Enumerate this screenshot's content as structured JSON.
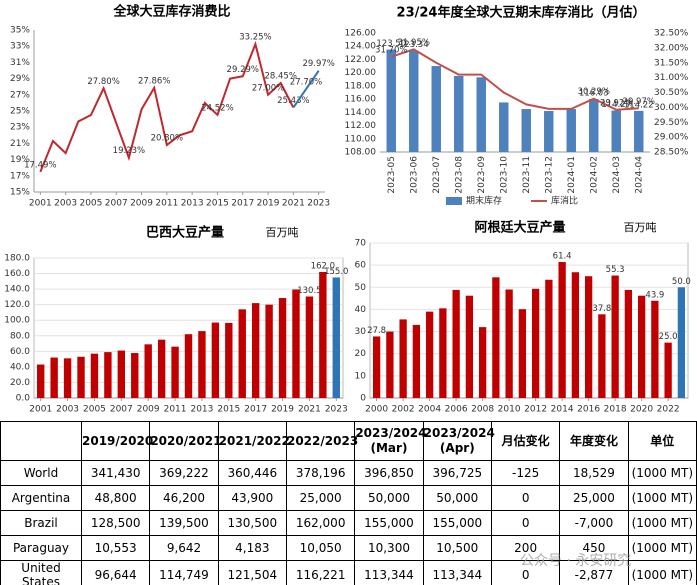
{
  "chart_data": [
    {
      "type": "line",
      "title": "全球大豆库存消费比",
      "x": [
        2001,
        2002,
        2003,
        2004,
        2005,
        2006,
        2007,
        2008,
        2009,
        2010,
        2011,
        2012,
        2013,
        2014,
        2015,
        2016,
        2017,
        2018,
        2019,
        2020,
        2021,
        2022,
        2023
      ],
      "xlim": [
        2000.5,
        2023.5
      ],
      "xticks": [
        2001,
        2003,
        2005,
        2007,
        2009,
        2011,
        2013,
        2015,
        2017,
        2019,
        2021,
        2023
      ],
      "ylim": [
        15,
        35
      ],
      "yticks": [
        {
          "value": 15,
          "label": "15%"
        },
        {
          "value": 17,
          "label": "17%"
        },
        {
          "value": 19,
          "label": "19%"
        },
        {
          "value": 21,
          "label": "21%"
        },
        {
          "value": 23,
          "label": "23%"
        },
        {
          "value": 25,
          "label": "25%"
        },
        {
          "value": 27,
          "label": "27%"
        },
        {
          "value": 29,
          "label": "29%"
        },
        {
          "value": 31,
          "label": "31%"
        },
        {
          "value": 33,
          "label": "33%"
        },
        {
          "value": 35,
          "label": "35%"
        }
      ],
      "grid": false,
      "series": [
        {
          "color": "#c0282d",
          "values": [
            17.49,
            21.3,
            19.8,
            23.7,
            24.5,
            27.8,
            23.5,
            19.23,
            25.2,
            27.86,
            20.8,
            22.0,
            22.5,
            26.0,
            24.52,
            29.0,
            29.29,
            33.25,
            27.0,
            28.45,
            25.43,
            null,
            null
          ],
          "value_labels": [
            "17.49%",
            null,
            null,
            null,
            null,
            "27.80%",
            null,
            "19.23%",
            null,
            "27.86%",
            "20.80%",
            null,
            null,
            null,
            "24.52%",
            null,
            "29.29%",
            "33.25%",
            "27.00%",
            "28.45%",
            "25.43%",
            null,
            null
          ]
        },
        {
          "color": "#2e75b6",
          "values": [
            null,
            null,
            null,
            null,
            null,
            null,
            null,
            null,
            null,
            null,
            null,
            null,
            null,
            null,
            null,
            null,
            null,
            null,
            null,
            null,
            25.43,
            27.7,
            29.97
          ],
          "value_labels": [
            null,
            null,
            null,
            null,
            null,
            null,
            null,
            null,
            null,
            null,
            null,
            null,
            null,
            null,
            null,
            null,
            null,
            null,
            null,
            null,
            null,
            "27.70%",
            "29.97%"
          ]
        }
      ]
    },
    {
      "type": "combo",
      "title": "23/24年度全球大豆期末库存消比（月估）",
      "categories": [
        "2023-05",
        "2023-06",
        "2023-07",
        "2023-08",
        "2023-09",
        "2023-10",
        "2023-11",
        "2023-12",
        "2024-01",
        "2024-02",
        "2024-03",
        "2024-04"
      ],
      "ylim": [
        108,
        126
      ],
      "yticks": [
        {
          "value": 108,
          "label": "108.00"
        },
        {
          "value": 110,
          "label": "110.00"
        },
        {
          "value": 112,
          "label": "112.00"
        },
        {
          "value": 114,
          "label": "114.00"
        },
        {
          "value": 116,
          "label": "116.00"
        },
        {
          "value": 118,
          "label": "118.00"
        },
        {
          "value": 120,
          "label": "120.00"
        },
        {
          "value": 122,
          "label": "122.00"
        },
        {
          "value": 124,
          "label": "124.00"
        },
        {
          "value": 126,
          "label": "126.00"
        }
      ],
      "y2lim": [
        28.5,
        32.5
      ],
      "y2ticks": [
        {
          "value": 28.5,
          "label": "28.50%"
        },
        {
          "value": 29,
          "label": "29.00%"
        },
        {
          "value": 29.5,
          "label": "29.50%"
        },
        {
          "value": 30,
          "label": "30.00%"
        },
        {
          "value": 30.5,
          "label": "30.50%"
        },
        {
          "value": 31,
          "label": "31.00%"
        },
        {
          "value": 31.5,
          "label": "31.50%"
        },
        {
          "value": 32,
          "label": "32.00%"
        },
        {
          "value": 32.5,
          "label": "32.50%"
        }
      ],
      "grid": false,
      "legend": "bottom",
      "series": [
        {
          "name": "期末库存",
          "type": "bar",
          "color": "#4f81bd",
          "values": [
            123.5,
            123.34,
            121.0,
            119.5,
            119.3,
            115.5,
            114.5,
            114.2,
            114.5,
            116.03,
            114.27,
            114.22
          ],
          "value_labels": [
            "123.50",
            "123.34",
            null,
            null,
            null,
            null,
            null,
            null,
            null,
            "116.03",
            "114.27",
            "114.22"
          ]
        },
        {
          "name": "库消比",
          "type": "line",
          "axis": "y2",
          "color": "#c0504d",
          "values": [
            31.7,
            31.95,
            31.5,
            31.1,
            31.1,
            30.5,
            30.1,
            29.95,
            29.95,
            30.29,
            29.92,
            29.97
          ],
          "value_labels": [
            "31.70%",
            "31.95%",
            null,
            null,
            null,
            null,
            null,
            null,
            null,
            "30.29%",
            "29.92%",
            "29.97%"
          ]
        }
      ]
    },
    {
      "type": "bar",
      "title": "巴西大豆产量",
      "unit": "百万吨",
      "x": [
        2001,
        2002,
        2003,
        2004,
        2005,
        2006,
        2007,
        2008,
        2009,
        2010,
        2011,
        2012,
        2013,
        2014,
        2015,
        2016,
        2017,
        2018,
        2019,
        2020,
        2021,
        2022,
        2023
      ],
      "xlim": [
        2000.5,
        2023.5
      ],
      "xticks": [
        2001,
        2003,
        2005,
        2007,
        2009,
        2011,
        2013,
        2015,
        2017,
        2019,
        2021,
        2023
      ],
      "ylim": [
        0,
        180
      ],
      "yticks": [
        {
          "value": 0,
          "label": "0.0"
        },
        {
          "value": 20,
          "label": "20.0"
        },
        {
          "value": 40,
          "label": "40.0"
        },
        {
          "value": 60,
          "label": "60.0"
        },
        {
          "value": 80,
          "label": "80.0"
        },
        {
          "value": 100,
          "label": "100.0"
        },
        {
          "value": 120,
          "label": "120.0"
        },
        {
          "value": 140,
          "label": "140.0"
        },
        {
          "value": 160,
          "label": "160.0"
        },
        {
          "value": 180,
          "label": "180.0"
        }
      ],
      "grid": true,
      "values": [
        43,
        52,
        51,
        53,
        57,
        59,
        61,
        57.8,
        69,
        75,
        66,
        82,
        86,
        97,
        96.5,
        114,
        122,
        120,
        128.5,
        139.5,
        130.5,
        162,
        155
      ],
      "value_labels": [
        null,
        null,
        null,
        null,
        null,
        null,
        null,
        null,
        null,
        null,
        null,
        null,
        null,
        null,
        null,
        null,
        null,
        null,
        null,
        null,
        "130.5",
        "162.0",
        "155.0"
      ],
      "colors": [
        "#c00000",
        "#c00000",
        "#c00000",
        "#c00000",
        "#c00000",
        "#c00000",
        "#c00000",
        "#c00000",
        "#c00000",
        "#c00000",
        "#c00000",
        "#c00000",
        "#c00000",
        "#c00000",
        "#c00000",
        "#c00000",
        "#c00000",
        "#c00000",
        "#c00000",
        "#c00000",
        "#c00000",
        "#c00000",
        "#2e75b6"
      ]
    },
    {
      "type": "bar",
      "title": "阿根廷大豆产量",
      "unit": "百万吨",
      "x": [
        2000,
        2001,
        2002,
        2003,
        2004,
        2005,
        2006,
        2007,
        2008,
        2009,
        2010,
        2011,
        2012,
        2013,
        2014,
        2015,
        2016,
        2017,
        2018,
        2019,
        2020,
        2021,
        2022,
        2023
      ],
      "xlim": [
        1999.5,
        2023.5
      ],
      "xticks": [
        2000,
        2002,
        2004,
        2006,
        2008,
        2010,
        2012,
        2014,
        2016,
        2018,
        2020,
        2022
      ],
      "ylim": [
        0,
        70
      ],
      "yticks": [
        0,
        10,
        20,
        30,
        40,
        50,
        60,
        70
      ],
      "grid": true,
      "values": [
        27.8,
        30,
        35.5,
        33,
        39,
        40.5,
        48.8,
        46.2,
        32,
        54.5,
        49,
        40.1,
        49.3,
        53.4,
        61.4,
        56.8,
        55,
        37.8,
        55.3,
        48.8,
        46.2,
        43.9,
        25,
        50
      ],
      "value_labels": [
        "27.8",
        null,
        null,
        null,
        null,
        null,
        null,
        null,
        null,
        null,
        null,
        null,
        null,
        null,
        "61.4",
        null,
        null,
        "37.8",
        "55.3",
        null,
        null,
        "43.9",
        "25.0",
        "50.0"
      ],
      "colors": [
        "#c00000",
        "#c00000",
        "#c00000",
        "#c00000",
        "#c00000",
        "#c00000",
        "#c00000",
        "#c00000",
        "#c00000",
        "#c00000",
        "#c00000",
        "#c00000",
        "#c00000",
        "#c00000",
        "#c00000",
        "#c00000",
        "#c00000",
        "#c00000",
        "#c00000",
        "#c00000",
        "#c00000",
        "#c00000",
        "#c00000",
        "#2e75b6"
      ]
    }
  ],
  "table": {
    "header": [
      "2019/2020",
      "2020/2021",
      "2021/2022",
      "2022/2023",
      [
        "2023/2024",
        "(Mar)"
      ],
      [
        "2023/2024",
        "(Apr)"
      ],
      "月估变化",
      "年度变化",
      "单位"
    ],
    "rows": [
      [
        "World",
        "341,430",
        "369,222",
        "360,446",
        "378,196",
        "396,850",
        "396,725",
        "-125",
        "18,529",
        "(1000 MT)"
      ],
      [
        "Argentina",
        "48,800",
        "46,200",
        "43,900",
        "25,000",
        "50,000",
        "50,000",
        "0",
        "25,000",
        "(1000 MT)"
      ],
      [
        "Brazil",
        "128,500",
        "139,500",
        "130,500",
        "162,000",
        "155,000",
        "155,000",
        "0",
        "-7,000",
        "(1000 MT)"
      ],
      [
        "Paraguay",
        "10,553",
        "9,642",
        "4,183",
        "10,050",
        "10,300",
        "10,500",
        "200",
        "450",
        "(1000 MT)"
      ],
      [
        "United States",
        "96,644",
        "114,749",
        "121,504",
        "116,221",
        "113,344",
        "113,344",
        "0",
        "-2,877",
        "(1000 MT)"
      ]
    ]
  },
  "watermark": "公众号 · 永安研究"
}
